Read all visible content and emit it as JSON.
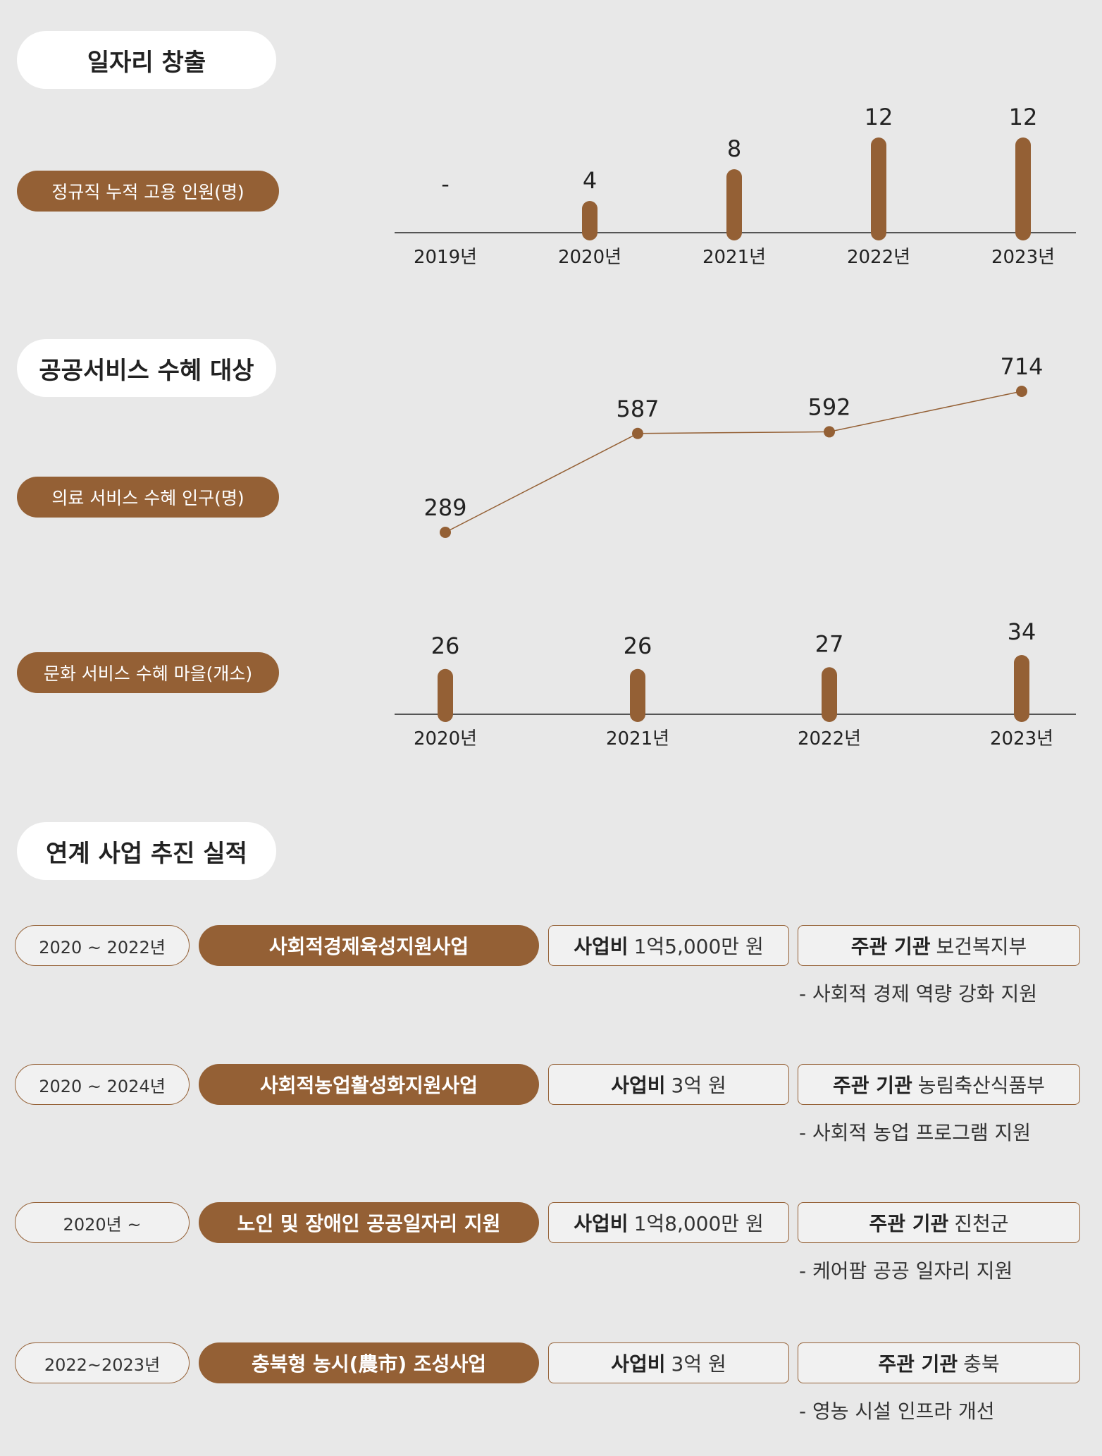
{
  "colors": {
    "accent": "#946035",
    "background": "#e8e8e8",
    "axis": "#555555"
  },
  "sections": {
    "jobs_title": "일자리 창출",
    "public_title": "공공서비스 수혜 대상",
    "projects_title": "연계 사업 추진 실적"
  },
  "metrics": {
    "jobs": "정규직 누적 고용 인원(명)",
    "medical": "의료 서비스 수혜 인구(명)",
    "culture": "문화 서비스 수혜 마을(개소)"
  },
  "chart_data": [
    {
      "type": "bar",
      "categories": [
        "2019년",
        "2020년",
        "2021년",
        "2022년",
        "2023년"
      ],
      "values": [
        null,
        4,
        8,
        12,
        12
      ],
      "labels": [
        "-",
        "4",
        "8",
        "12",
        "12"
      ]
    },
    {
      "type": "line",
      "categories": [
        "2020년",
        "2021년",
        "2022년",
        "2023년"
      ],
      "values": [
        289,
        587,
        592,
        714
      ],
      "labels": [
        "289",
        "587",
        "592",
        "714"
      ]
    },
    {
      "type": "bar",
      "categories": [
        "2020년",
        "2021년",
        "2022년",
        "2023년"
      ],
      "values": [
        26,
        26,
        27,
        34
      ],
      "labels": [
        "26",
        "26",
        "27",
        "34"
      ]
    }
  ],
  "projects": [
    {
      "period": "2020 ~ 2022년",
      "name": "사회적경제육성지원사업",
      "budget_label": "사업비",
      "budget": "1억5,000만 원",
      "agency_label": "주관 기관",
      "agency": "보건복지부",
      "note": "- 사회적 경제 역량 강화 지원"
    },
    {
      "period": "2020 ~ 2024년",
      "name": "사회적농업활성화지원사업",
      "budget_label": "사업비",
      "budget": "3억 원",
      "agency_label": "주관 기관",
      "agency": "농림축산식품부",
      "note": "- 사회적 농업 프로그램 지원"
    },
    {
      "period": "2020년 ~",
      "name": "노인 및 장애인 공공일자리 지원",
      "budget_label": "사업비",
      "budget": "1억8,000만 원",
      "agency_label": "주관 기관",
      "agency": "진천군",
      "note": "- 케어팜 공공 일자리 지원"
    },
    {
      "period": "2022~2023년",
      "name": "충북형 농시(農市) 조성사업",
      "budget_label": "사업비",
      "budget": "3억 원",
      "agency_label": "주관 기관",
      "agency": "충북",
      "note": "- 영농 시설 인프라 개선"
    }
  ]
}
